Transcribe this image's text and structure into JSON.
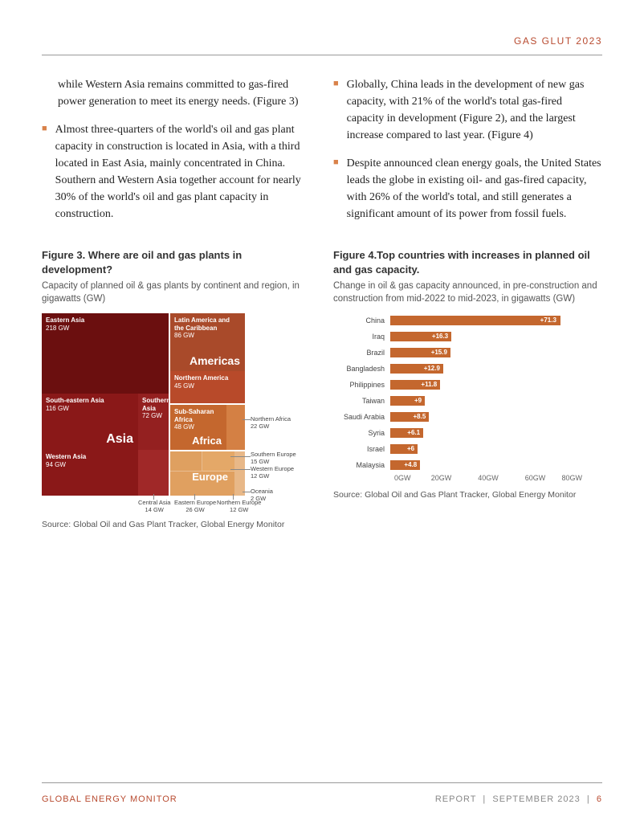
{
  "header": {
    "title": "GAS GLUT 2023"
  },
  "col1": {
    "para1": "while Western Asia remains committed to gas-fired power generation to meet its energy needs. (Figure 3)",
    "bullet1": "Almost three-quarters of the world's oil and gas plant capacity in construction is located in Asia, with a third located in East Asia, mainly concentrated in China. Southern and Western Asia together account for nearly 30% of the world's oil and gas plant capacity in construction."
  },
  "col2": {
    "bullet1": "Globally, China leads in the development of new gas capacity, with 21% of the world's total gas-fired capacity in development (Figure 2), and the largest increase compared to last year. (Figure 4)",
    "bullet2": "Despite announced clean energy goals, the United States leads the globe in existing oil- and gas-fired capacity, with 26% of the world's total, and still generates a significant amount of its power from fossil fuels."
  },
  "fig3": {
    "title": "Figure 3. Where are oil and gas plants in development?",
    "subtitle": "Capacity of planned oil & gas plants by continent and region, in gigawatts (GW)",
    "source": "Source: Global Oil and Gas Plant Tracker, Global Energy Monitor",
    "colors": {
      "eastern_asia": "#6b0f0f",
      "south_eastern_asia": "#8a1818",
      "western_asia": "#8a1818",
      "southern_asia": "#8a1818",
      "asia_label": "#8a1818",
      "latin_america": "#a94a2a",
      "northern_america": "#b84a2a",
      "sub_saharan": "#c4672e",
      "europe": "#e0a060",
      "oceania": "#e8b888"
    },
    "cells": {
      "eastern_asia": {
        "name": "Eastern Asia",
        "val": "218 GW"
      },
      "south_eastern_asia": {
        "name": "South-eastern Asia",
        "val": "116 GW"
      },
      "western_asia": {
        "name": "Western Asia",
        "val": "94 GW"
      },
      "southern_asia": {
        "name": "Southern Asia",
        "val": "72 GW"
      },
      "asia_big": "Asia",
      "latin_america": {
        "name": "Latin America and the Caribbean",
        "val": "86 GW"
      },
      "americas_big": "Americas",
      "northern_america": {
        "name": "Northern America",
        "val": "45 GW"
      },
      "sub_saharan": {
        "name": "Sub-Saharan Africa",
        "val": "48 GW"
      },
      "africa_big": "Africa",
      "europe_big": "Europe"
    },
    "callouts": {
      "northern_africa": "Northern Africa\n22 GW",
      "southern_europe": "Southern Europe\n15 GW",
      "western_europe": "Western Europe\n12 GW",
      "oceania": "Oceania\n2 GW",
      "central_asia": "Central Asia\n14 GW",
      "eastern_europe": "Eastern Europe\n26 GW",
      "northern_europe": "Northern Europe\n12 GW"
    }
  },
  "fig4": {
    "title": "Figure 4.Top countries with increases in planned oil and gas capacity.",
    "subtitle": "Change in oil & gas capacity announced, in pre-construction and construction from mid-2022 to mid-2023, in gigawatts (GW)",
    "source": "Source: Global Oil and Gas Plant Tracker, Global Energy Monitor",
    "bar_color": "#c4672e",
    "max": 80,
    "bar_outside_color": "#b05a28",
    "ticks": [
      "0GW",
      "20GW",
      "40GW",
      "60GW",
      "80GW"
    ],
    "data": [
      {
        "label": "China",
        "value": 71.3,
        "text": "+71.3",
        "inside": true
      },
      {
        "label": "Iraq",
        "value": 16.3,
        "text": "+16.3",
        "inside": false
      },
      {
        "label": "Brazil",
        "value": 15.9,
        "text": "+15.9",
        "inside": false
      },
      {
        "label": "Bangladesh",
        "value": 12.9,
        "text": "+12.9",
        "inside": false
      },
      {
        "label": "Philippines",
        "value": 11.8,
        "text": "+11.8",
        "inside": false
      },
      {
        "label": "Taiwan",
        "value": 9,
        "text": "+9",
        "inside": false
      },
      {
        "label": "Saudi Arabia",
        "value": 8.5,
        "text": "+8.5",
        "inside": false
      },
      {
        "label": "Syria",
        "value": 6.1,
        "text": "+6.1",
        "inside": false
      },
      {
        "label": "Israel",
        "value": 6,
        "text": "+6",
        "inside": false
      },
      {
        "label": "Malaysia",
        "value": 4.8,
        "text": "+4.8",
        "inside": false
      }
    ]
  },
  "footer": {
    "left": "GLOBAL ENERGY MONITOR",
    "right_report": "REPORT",
    "right_date": "SEPTEMBER 2023",
    "page": "6"
  }
}
